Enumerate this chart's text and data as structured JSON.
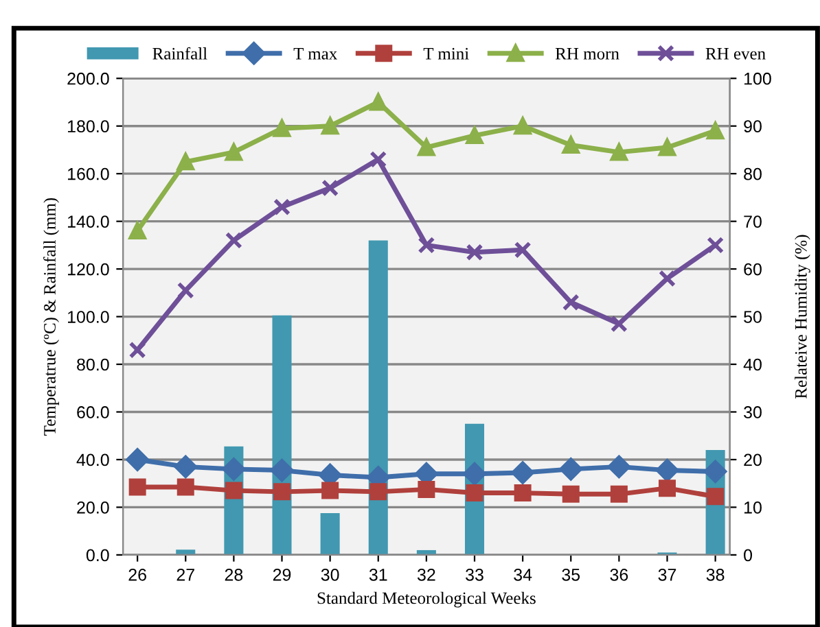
{
  "chart_data": {
    "type": "bar",
    "xlabel": "Standard Meteorological Weeks",
    "ylabel": "Temperatrue (ºC) & Rainfall (mm)",
    "y2label": "Relateive Humidity (%)",
    "categories": [
      "26",
      "27",
      "28",
      "29",
      "30",
      "31",
      "32",
      "33",
      "34",
      "35",
      "36",
      "37",
      "38"
    ],
    "series": [
      {
        "name": "Rainfall",
        "color": "#4198b0",
        "values": [
          0,
          2.2,
          45.5,
          100.5,
          17.5,
          132,
          2,
          55,
          0,
          0,
          0,
          1,
          44
        ]
      },
      {
        "name": "T max",
        "type": "line",
        "marker": "diamond",
        "color": "#3f6eaa",
        "values": [
          40,
          37,
          36,
          35.5,
          33.5,
          32.5,
          34,
          34,
          34.5,
          36,
          37,
          35.5,
          35
        ]
      },
      {
        "name": "T mini",
        "type": "line",
        "marker": "square",
        "color": "#b0403c",
        "values": [
          28.5,
          28.5,
          27,
          26.5,
          27,
          26.5,
          27.5,
          26,
          26,
          25.5,
          25.5,
          28,
          24.5
        ]
      },
      {
        "name": "RH morn",
        "type": "line",
        "marker": "triangle",
        "axis": "y2",
        "color": "#8cb04a",
        "values": [
          68,
          82.5,
          84.5,
          89.5,
          90,
          95,
          85.5,
          88,
          90,
          86,
          84.5,
          85.5,
          89
        ]
      },
      {
        "name": "RH even",
        "type": "line",
        "marker": "cross",
        "axis": "y2",
        "color": "#6e4f98",
        "values": [
          43,
          55.5,
          66,
          73,
          77,
          83,
          65,
          63.5,
          64,
          53,
          48.5,
          58,
          65
        ]
      }
    ],
    "ylim": [
      0,
      200
    ],
    "yticks": [
      {
        "value": 0,
        "label": "0.0"
      },
      {
        "value": 20,
        "label": "20.0"
      },
      {
        "value": 40,
        "label": "40.0"
      },
      {
        "value": 60,
        "label": "60.0"
      },
      {
        "value": 80,
        "label": "80.0"
      },
      {
        "value": 100,
        "label": "100.0"
      },
      {
        "value": 120,
        "label": "120.0"
      },
      {
        "value": 140,
        "label": "140.0"
      },
      {
        "value": 160,
        "label": "160.0"
      },
      {
        "value": 180,
        "label": "180.0"
      },
      {
        "value": 200,
        "label": "200.0"
      }
    ],
    "y2lim": [
      0,
      100
    ],
    "y2ticks": [
      0,
      10,
      20,
      30,
      40,
      50,
      60,
      70,
      80,
      90,
      100
    ],
    "grid": "y",
    "legend": "top"
  }
}
